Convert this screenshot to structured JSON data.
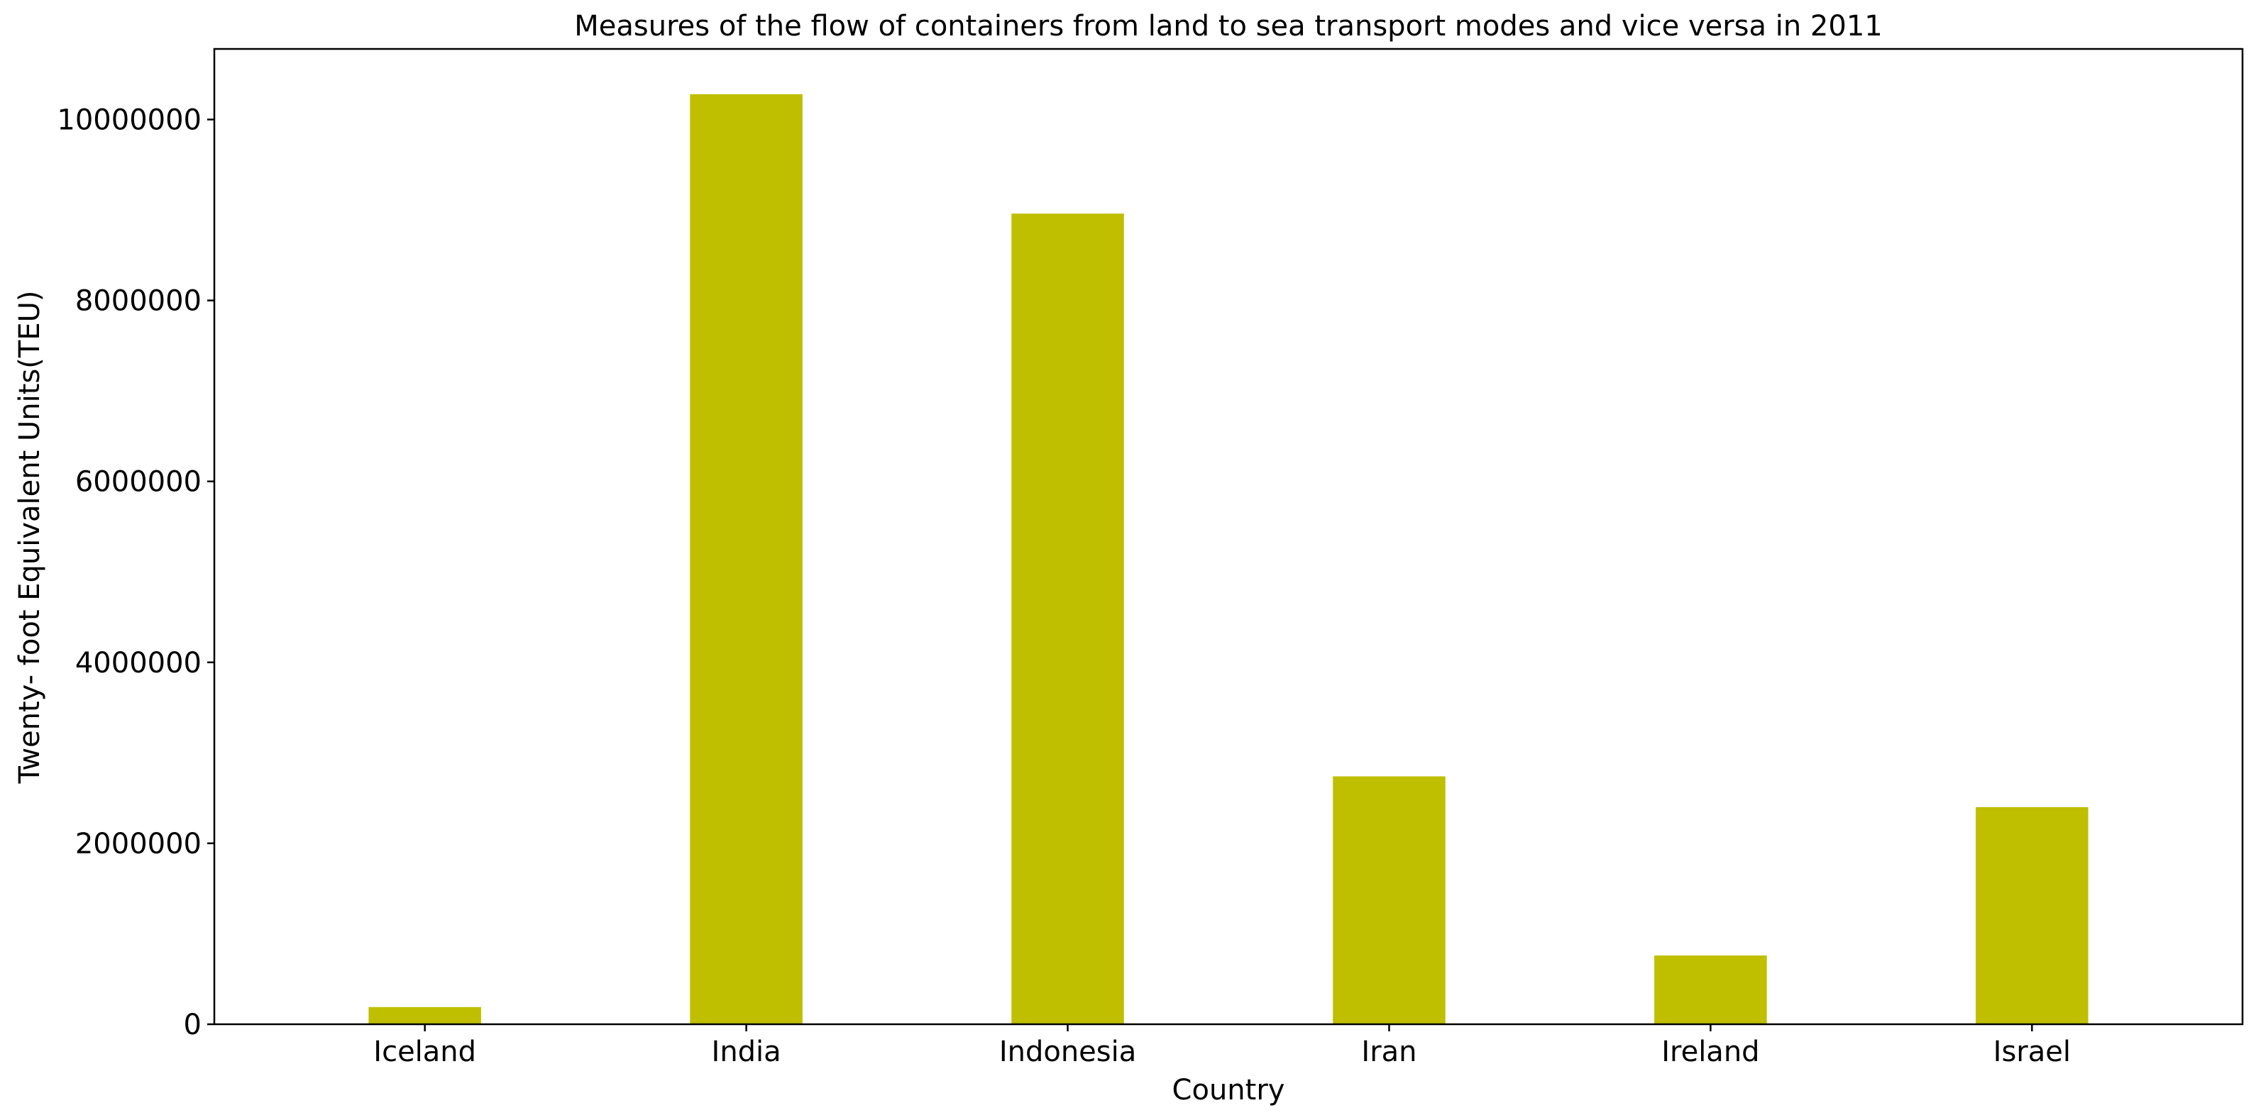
{
  "chart_data": {
    "type": "bar",
    "title": "Measures of the flow of containers from land to sea transport modes and vice versa in 2011",
    "xlabel": "Country",
    "ylabel": "Twenty- foot Equivalent Units(TEU)",
    "categories": [
      "Iceland",
      "India",
      "Indonesia",
      "Iran",
      "Ireland",
      "Israel"
    ],
    "values": [
      190000,
      10280000,
      8960000,
      2740000,
      760000,
      2400000
    ],
    "ylim": [
      0,
      10780000
    ],
    "yticks": [
      0,
      2000000,
      4000000,
      6000000,
      8000000,
      10000000
    ],
    "ytick_labels": [
      "0",
      "2000000",
      "4000000",
      "6000000",
      "8000000",
      "10000000"
    ],
    "grid": false,
    "bar_color": "#bfbf00"
  }
}
